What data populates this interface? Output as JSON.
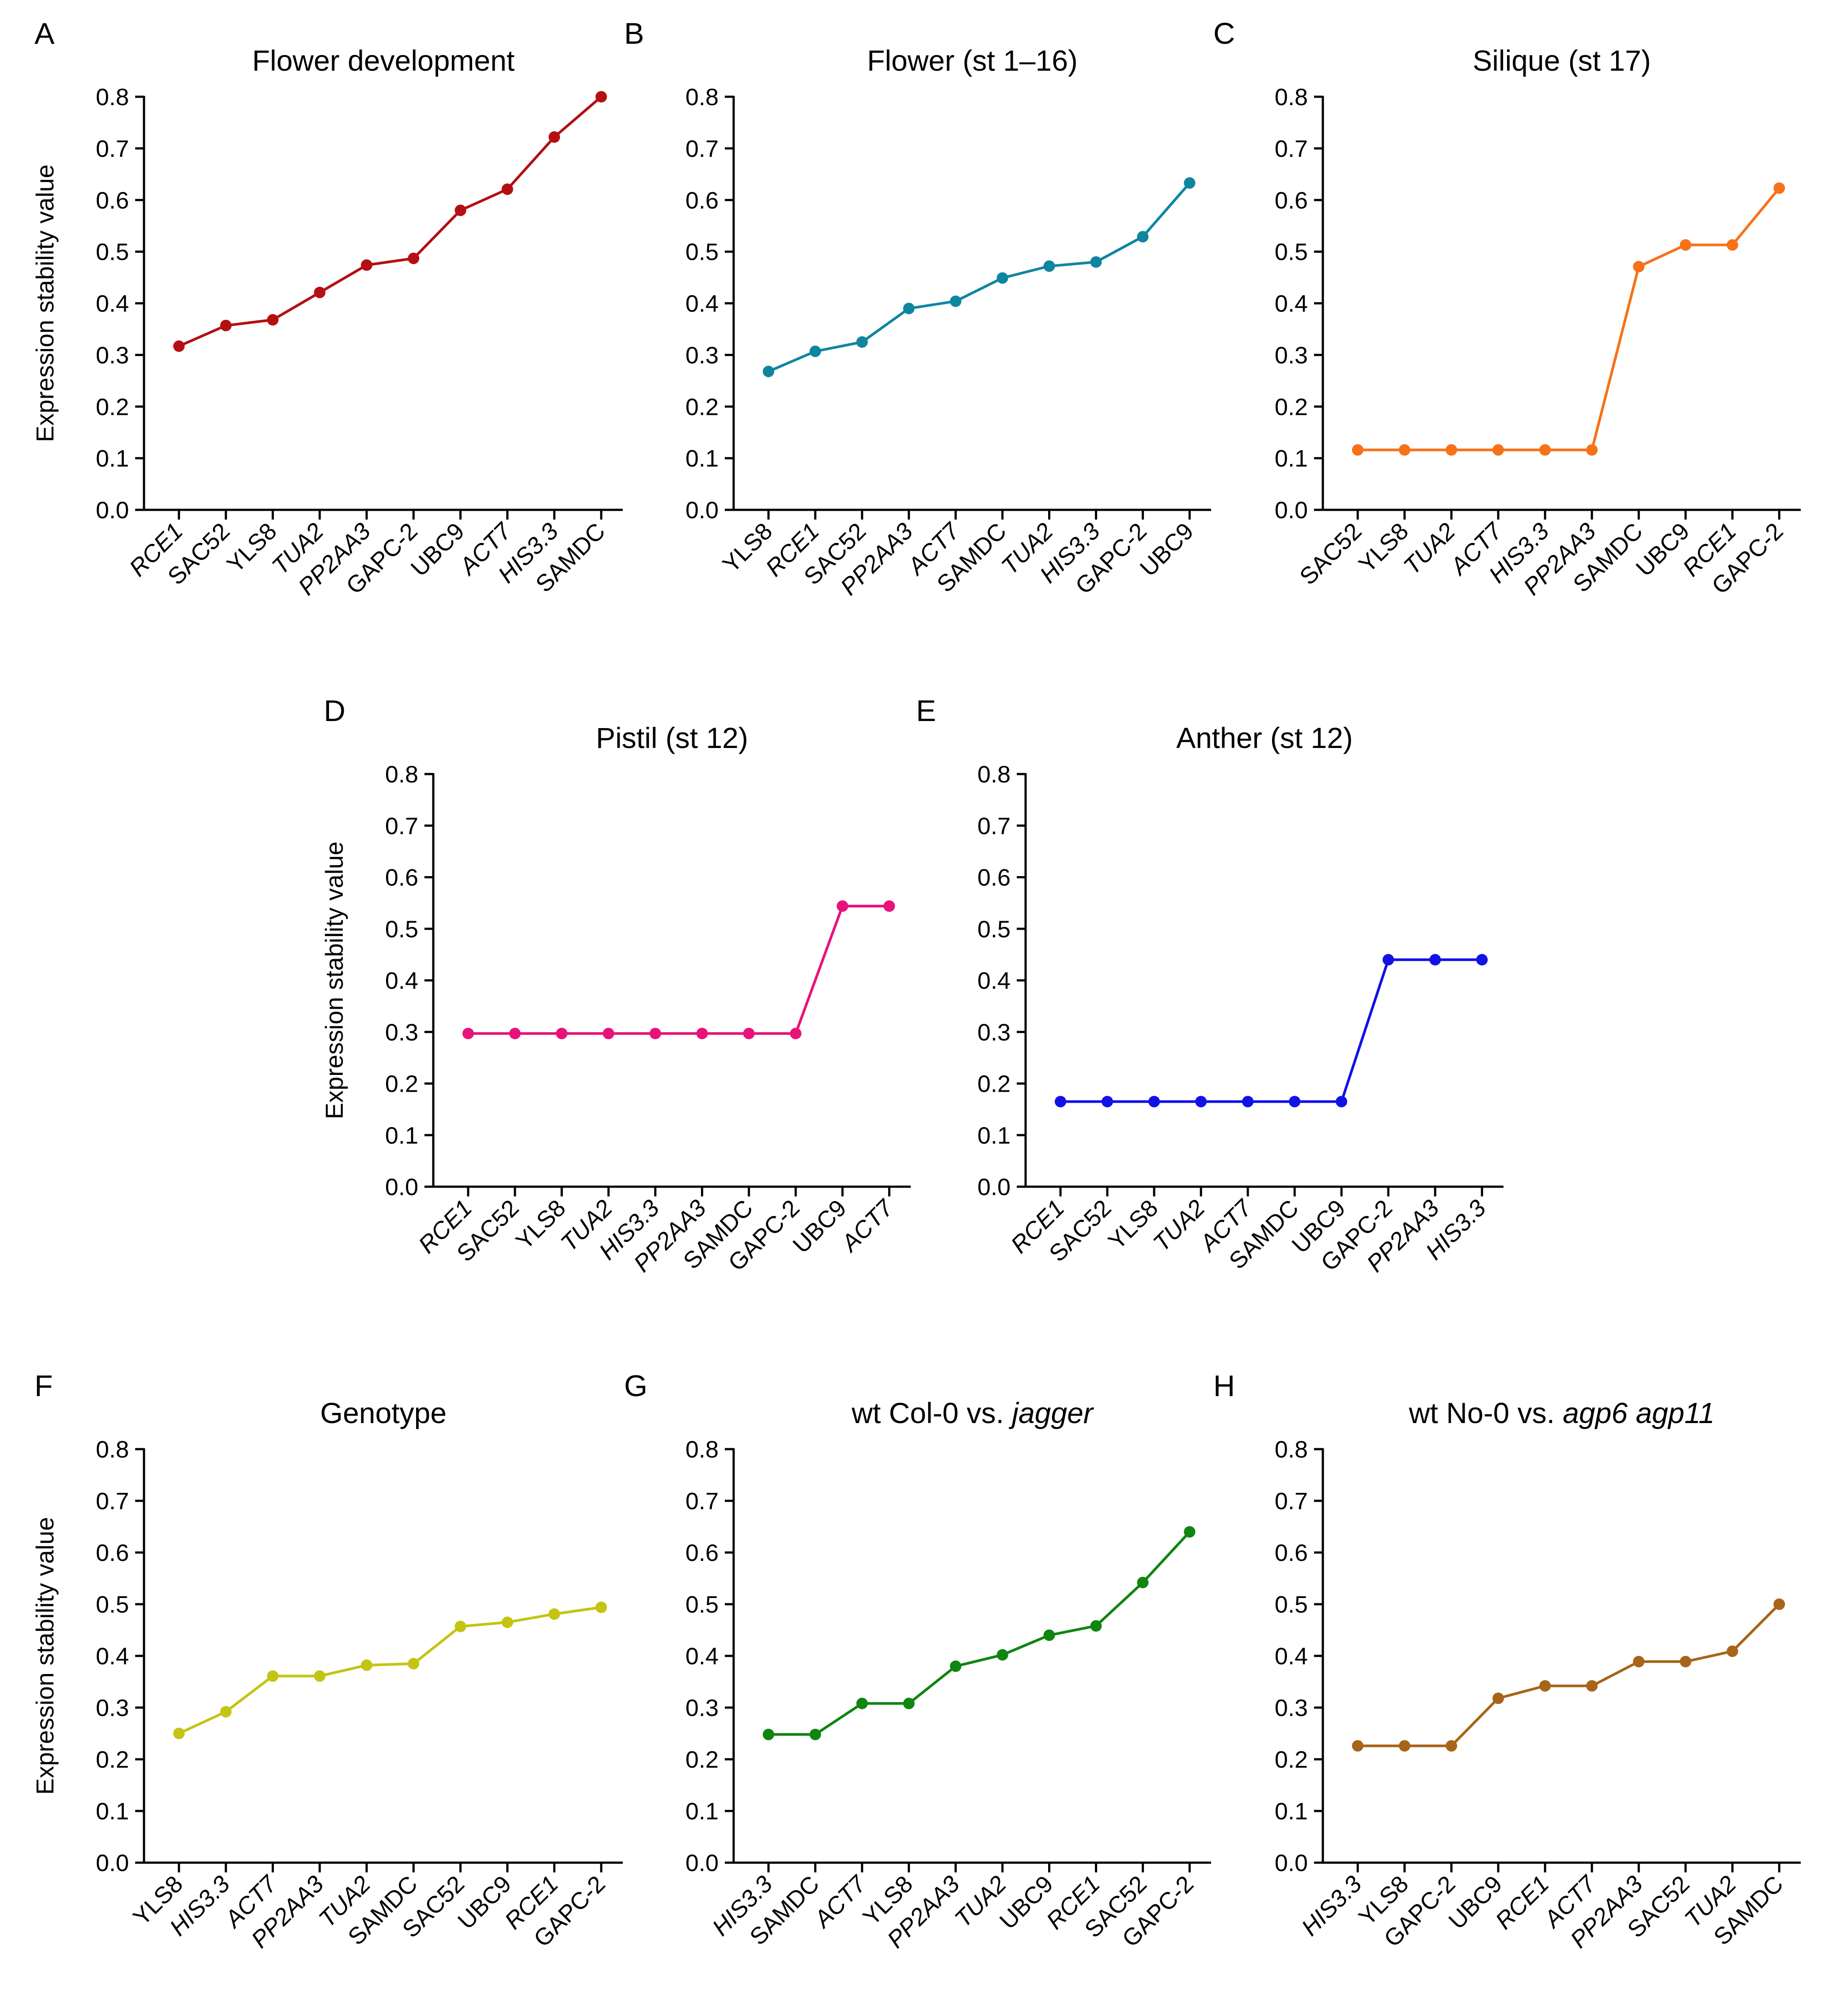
{
  "figure": {
    "ylabel": "Expression stability value",
    "upright_labels": [
      "GAPC-2",
      "SAMDC",
      "UBC9",
      "SAC52",
      "YLS8"
    ]
  },
  "chart_data": [
    {
      "letter": "A",
      "type": "line",
      "title": "Flower development",
      "color": "#b40f12",
      "ylabel": "Expression stability value",
      "ylim": [
        0,
        0.8
      ],
      "yticks": [
        0,
        0.1,
        0.2,
        0.3,
        0.4,
        0.5,
        0.6,
        0.7,
        0.8
      ],
      "ytick_labels": [
        "0.0",
        "0.1",
        "0.2",
        "0.3",
        "0.4",
        "0.5",
        "0.6",
        "0.7",
        "0.8"
      ],
      "categories": [
        "RCE1",
        "SAC52",
        "YLS8",
        "TUA2",
        "PP2AA3",
        "GAPC-2",
        "UBC9",
        "ACT7",
        "HIS3.3",
        "SAMDC"
      ],
      "values": [
        0.317,
        0.357,
        0.368,
        0.421,
        0.474,
        0.487,
        0.58,
        0.621,
        0.722,
        0.8
      ]
    },
    {
      "letter": "B",
      "type": "line",
      "title": "Flower (st 1–16)",
      "color": "#0f86a0",
      "ylabel": "",
      "ylim": [
        0,
        0.8
      ],
      "yticks": [
        0,
        0.1,
        0.2,
        0.3,
        0.4,
        0.5,
        0.6,
        0.7,
        0.8
      ],
      "ytick_labels": [
        "0.0",
        "0.1",
        "0.2",
        "0.3",
        "0.4",
        "0.5",
        "0.6",
        "0.7",
        "0.8"
      ],
      "categories": [
        "YLS8",
        "RCE1",
        "SAC52",
        "PP2AA3",
        "ACT7",
        "SAMDC",
        "TUA2",
        "HIS3.3",
        "GAPC-2",
        "UBC9"
      ],
      "values": [
        0.268,
        0.307,
        0.325,
        0.39,
        0.404,
        0.449,
        0.472,
        0.48,
        0.529,
        0.633
      ]
    },
    {
      "letter": "C",
      "type": "line",
      "title": "Silique (st 17)",
      "color": "#f77118",
      "ylabel": "",
      "ylim": [
        0,
        0.8
      ],
      "yticks": [
        0,
        0.1,
        0.2,
        0.3,
        0.4,
        0.5,
        0.6,
        0.7,
        0.8
      ],
      "ytick_labels": [
        "0.0",
        "0.1",
        "0.2",
        "0.3",
        "0.4",
        "0.5",
        "0.6",
        "0.7",
        "0.8"
      ],
      "categories": [
        "SAC52",
        "YLS8",
        "TUA2",
        "ACT7",
        "HIS3.3",
        "PP2AA3",
        "SAMDC",
        "UBC9",
        "RCE1",
        "GAPC-2"
      ],
      "values": [
        0.116,
        0.116,
        0.116,
        0.116,
        0.116,
        0.116,
        0.471,
        0.513,
        0.513,
        0.623
      ]
    },
    {
      "letter": "D",
      "type": "line",
      "title": "Pistil (st 12)",
      "color": "#e8137a",
      "ylabel": "Expression stability value",
      "ylim": [
        0,
        0.8
      ],
      "yticks": [
        0,
        0.1,
        0.2,
        0.3,
        0.4,
        0.5,
        0.6,
        0.7,
        0.8
      ],
      "ytick_labels": [
        "0.0",
        "0.1",
        "0.2",
        "0.3",
        "0.4",
        "0.5",
        "0.6",
        "0.7",
        "0.8"
      ],
      "categories": [
        "RCE1",
        "SAC52",
        "YLS8",
        "TUA2",
        "HIS3.3",
        "PP2AA3",
        "SAMDC",
        "GAPC-2",
        "UBC9",
        "ACT7"
      ],
      "values": [
        0.297,
        0.297,
        0.297,
        0.297,
        0.297,
        0.297,
        0.297,
        0.297,
        0.544,
        0.544
      ]
    },
    {
      "letter": "E",
      "type": "line",
      "title": "Anther (st 12)",
      "color": "#1212e6",
      "ylabel": "",
      "ylim": [
        0,
        0.8
      ],
      "yticks": [
        0,
        0.1,
        0.2,
        0.3,
        0.4,
        0.5,
        0.6,
        0.7,
        0.8
      ],
      "ytick_labels": [
        "0.0",
        "0.1",
        "0.2",
        "0.3",
        "0.4",
        "0.5",
        "0.6",
        "0.7",
        "0.8"
      ],
      "categories": [
        "RCE1",
        "SAC52",
        "YLS8",
        "TUA2",
        "ACT7",
        "SAMDC",
        "UBC9",
        "GAPC-2",
        "PP2AA3",
        "HIS3.3"
      ],
      "values": [
        0.165,
        0.165,
        0.165,
        0.165,
        0.165,
        0.165,
        0.165,
        0.44,
        0.44,
        0.44
      ]
    },
    {
      "letter": "F",
      "type": "line",
      "title": "Genotype",
      "color": "#c4c412",
      "ylabel": "Expression stability value",
      "ylim": [
        0,
        0.8
      ],
      "yticks": [
        0,
        0.1,
        0.2,
        0.3,
        0.4,
        0.5,
        0.6,
        0.7,
        0.8
      ],
      "ytick_labels": [
        "0.0",
        "0.1",
        "0.2",
        "0.3",
        "0.4",
        "0.5",
        "0.6",
        "0.7",
        "0.8"
      ],
      "categories": [
        "YLS8",
        "HIS3.3",
        "ACT7",
        "PP2AA3",
        "TUA2",
        "SAMDC",
        "SAC52",
        "UBC9",
        "RCE1",
        "GAPC-2"
      ],
      "values": [
        0.25,
        0.292,
        0.361,
        0.361,
        0.382,
        0.385,
        0.457,
        0.465,
        0.481,
        0.494
      ]
    },
    {
      "letter": "G",
      "type": "line",
      "title": "wt Col-0 vs. ",
      "title_italic": "jagger",
      "color": "#108510",
      "ylabel": "",
      "ylim": [
        0,
        0.8
      ],
      "yticks": [
        0,
        0.1,
        0.2,
        0.3,
        0.4,
        0.5,
        0.6,
        0.7,
        0.8
      ],
      "ytick_labels": [
        "0.0",
        "0.1",
        "0.2",
        "0.3",
        "0.4",
        "0.5",
        "0.6",
        "0.7",
        "0.8"
      ],
      "categories": [
        "HIS3.3",
        "SAMDC",
        "ACT7",
        "YLS8",
        "PP2AA3",
        "TUA2",
        "UBC9",
        "RCE1",
        "SAC52",
        "GAPC-2"
      ],
      "values": [
        0.248,
        0.248,
        0.308,
        0.308,
        0.38,
        0.402,
        0.44,
        0.458,
        0.542,
        0.64
      ]
    },
    {
      "letter": "H",
      "type": "line",
      "title": "wt No-0 vs. ",
      "title_italic": "agp6 agp11",
      "color": "#a86418",
      "ylabel": "",
      "ylim": [
        0,
        0.8
      ],
      "yticks": [
        0,
        0.1,
        0.2,
        0.3,
        0.4,
        0.5,
        0.6,
        0.7,
        0.8
      ],
      "ytick_labels": [
        "0.0",
        "0.1",
        "0.2",
        "0.3",
        "0.4",
        "0.5",
        "0.6",
        "0.7",
        "0.8"
      ],
      "categories": [
        "HIS3.3",
        "YLS8",
        "GAPC-2",
        "UBC9",
        "RCE1",
        "ACT7",
        "PP2AA3",
        "SAC52",
        "TUA2",
        "SAMDC"
      ],
      "values": [
        0.226,
        0.226,
        0.226,
        0.318,
        0.342,
        0.342,
        0.389,
        0.389,
        0.409,
        0.5
      ]
    }
  ]
}
